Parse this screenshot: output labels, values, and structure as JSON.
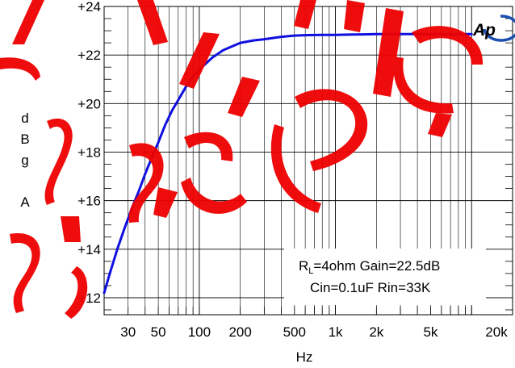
{
  "chart_data": {
    "type": "line",
    "title": "",
    "xlabel": "Hz",
    "ylabel": [
      "d",
      "B",
      "g",
      "",
      "A"
    ],
    "xscale": "log",
    "xlim": [
      20,
      20000
    ],
    "ylim": [
      11.3,
      24
    ],
    "x_ticks": [
      {
        "value": 30,
        "label": "30"
      },
      {
        "value": 50,
        "label": "50"
      },
      {
        "value": 100,
        "label": "100"
      },
      {
        "value": 200,
        "label": "200"
      },
      {
        "value": 500,
        "label": "500"
      },
      {
        "value": 1000,
        "label": "1k"
      },
      {
        "value": 2000,
        "label": "2k"
      },
      {
        "value": 5000,
        "label": "5k"
      },
      {
        "value": 20000,
        "label": "20k"
      }
    ],
    "y_ticks": [
      {
        "value": 12,
        "label": "+12"
      },
      {
        "value": 14,
        "label": "+14"
      },
      {
        "value": 16,
        "label": "+16"
      },
      {
        "value": 18,
        "label": "+18"
      },
      {
        "value": 20,
        "label": "+20"
      },
      {
        "value": 22,
        "label": "+22"
      },
      {
        "value": 24,
        "label": "+24"
      }
    ],
    "grid": true,
    "series": [
      {
        "color": "#1010e0",
        "x": [
          20,
          22,
          25,
          28,
          32,
          36,
          40,
          45,
          50,
          56,
          63,
          71,
          80,
          90,
          100,
          125,
          150,
          200,
          250,
          300,
          400,
          500,
          630,
          800,
          1000,
          1250,
          1600,
          2000,
          3000,
          5000,
          8000,
          10000
        ],
        "y": [
          12.2,
          13.0,
          14.0,
          14.8,
          15.7,
          16.4,
          17.1,
          17.8,
          18.4,
          19.1,
          19.7,
          20.2,
          20.7,
          21.1,
          21.4,
          21.9,
          22.2,
          22.5,
          22.6,
          22.65,
          22.75,
          22.8,
          22.82,
          22.83,
          22.83,
          22.84,
          22.85,
          22.86,
          22.86,
          22.86,
          22.86,
          22.86
        ]
      }
    ],
    "annotation": {
      "line1_prefix": "R",
      "line1_sub": "L",
      "line1_rest": "=4ohm Gain=22.5dB",
      "line2": "Cin=0.1uF Rin=33K"
    }
  },
  "logo": {
    "text": "Ap",
    "color": "#1d4fb0"
  },
  "watermark": {
    "color": "#ee0000"
  }
}
